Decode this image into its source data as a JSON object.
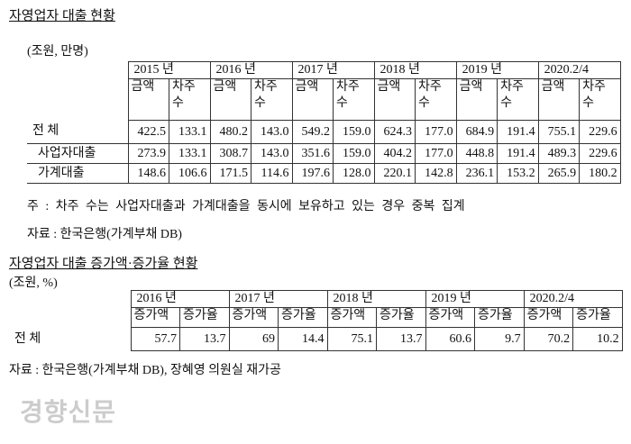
{
  "title1": "자영업자 대출 현황",
  "unit1": "(조원, 만명)",
  "table1": {
    "years": [
      "2015 년",
      "2016 년",
      "2017 년",
      "2018 년",
      "2019 년",
      "2020.2/4"
    ],
    "sub_headers": [
      "금액",
      "차주 수"
    ],
    "rows": [
      {
        "label": "전 체",
        "values": [
          "422.5",
          "133.1",
          "480.2",
          "143.0",
          "549.2",
          "159.0",
          "624.3",
          "177.0",
          "684.9",
          "191.4",
          "755.1",
          "229.6"
        ]
      },
      {
        "label": "사업자대출",
        "values": [
          "273.9",
          "133.1",
          "308.7",
          "143.0",
          "351.6",
          "159.0",
          "404.2",
          "177.0",
          "448.8",
          "191.4",
          "489.3",
          "229.6"
        ]
      },
      {
        "label": "가계대출",
        "values": [
          "148.6",
          "106.6",
          "171.5",
          "114.6",
          "197.6",
          "128.0",
          "220.1",
          "142.8",
          "236.1",
          "153.2",
          "265.9",
          "180.2"
        ]
      }
    ]
  },
  "note": "주 : 차주 수는 사업자대출과 가계대출을 동시에 보유하고 있는 경우 중복 집계",
  "source1": "자료 : 한국은행(가계부채 DB)",
  "title2": "자영업자 대출 증가액·증가율 현황",
  "unit2": "(조원, %)",
  "table2": {
    "years": [
      "2016 년",
      "2017 년",
      "2018 년",
      "2019 년",
      "2020.2/4"
    ],
    "sub_headers": [
      "증가액",
      "증가율"
    ],
    "rows": [
      {
        "label": "전 체",
        "values": [
          "57.7",
          "13.7",
          "69",
          "14.4",
          "75.1",
          "13.7",
          "60.6",
          "9.7",
          "70.2",
          "10.2"
        ]
      }
    ]
  },
  "source2": "자료 : 한국은행(가계부채 DB), 장혜영 의원실 재가공",
  "watermark": "경향신문"
}
